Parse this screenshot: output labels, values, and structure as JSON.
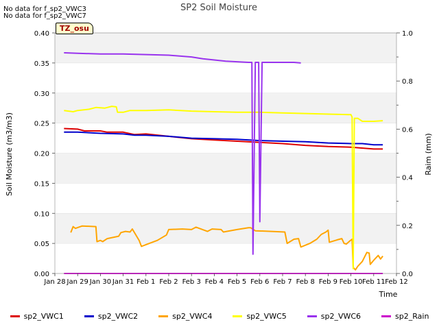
{
  "notes": [
    "No data for f_sp2_VWC3",
    "No data for f_sp2_VWC7"
  ],
  "badge": "TZ_osu",
  "colors": {
    "sp2_VWC1": "#dd0000",
    "sp2_VWC2": "#0000cc",
    "sp2_VWC4": "#ffa500",
    "sp2_VWC5": "#ffff00",
    "sp2_VWC6": "#9933ee",
    "sp2_Rain": "#cc00cc",
    "band": "#f2f2f2",
    "grid": "#dddddd"
  },
  "chart_data": {
    "type": "line",
    "title": "SP2 Soil Moisture",
    "xlabel": "Time",
    "ylabel": "Soil Moisture (m3/m3)",
    "y2label": "Raim (mm)",
    "ylim": [
      0,
      0.4
    ],
    "y2lim": [
      0,
      1.0
    ],
    "xlim": [
      0,
      15
    ],
    "grid": "horizontal",
    "background_bands": "alternating",
    "legend_position": "bottom",
    "yticks": [
      "0.00",
      "0.05",
      "0.10",
      "0.15",
      "0.20",
      "0.25",
      "0.30",
      "0.35",
      "0.40"
    ],
    "y2ticks": [
      "0.0",
      "0.2",
      "0.4",
      "0.6",
      "0.8",
      "1.0"
    ],
    "xticks": [
      "Jan 28",
      "Jan 29",
      "Jan 30",
      "Jan 31",
      "Feb 1",
      "Feb 2",
      "Feb 3",
      "Feb 4",
      "Feb 5",
      "Feb 6",
      "Feb 7",
      "Feb 8",
      "Feb 9",
      "Feb 10",
      "Feb 11",
      "Feb 12"
    ],
    "series": [
      {
        "name": "sp2_VWC1",
        "axis": "left",
        "points": [
          [
            0.4,
            0.241
          ],
          [
            1,
            0.24
          ],
          [
            1.3,
            0.237
          ],
          [
            2,
            0.237
          ],
          [
            2.3,
            0.235
          ],
          [
            3,
            0.235
          ],
          [
            3.5,
            0.231
          ],
          [
            4,
            0.232
          ],
          [
            5,
            0.228
          ],
          [
            6,
            0.224
          ],
          [
            7,
            0.222
          ],
          [
            8,
            0.22
          ],
          [
            9,
            0.218
          ],
          [
            10,
            0.216
          ],
          [
            11,
            0.213
          ],
          [
            12,
            0.211
          ],
          [
            13,
            0.21
          ],
          [
            14,
            0.207
          ],
          [
            14.4,
            0.207
          ]
        ]
      },
      {
        "name": "sp2_VWC2",
        "axis": "left",
        "points": [
          [
            0.4,
            0.235
          ],
          [
            1,
            0.235
          ],
          [
            2,
            0.233
          ],
          [
            3,
            0.232
          ],
          [
            3.5,
            0.23
          ],
          [
            4,
            0.23
          ],
          [
            5,
            0.228
          ],
          [
            6,
            0.225
          ],
          [
            7,
            0.224
          ],
          [
            8,
            0.223
          ],
          [
            9,
            0.221
          ],
          [
            10,
            0.22
          ],
          [
            11,
            0.219
          ],
          [
            12,
            0.217
          ],
          [
            13,
            0.216
          ],
          [
            13.5,
            0.216
          ],
          [
            14,
            0.214
          ],
          [
            14.4,
            0.214
          ]
        ]
      },
      {
        "name": "sp2_VWC4",
        "axis": "left",
        "points": [
          [
            0.7,
            0.068
          ],
          [
            0.8,
            0.078
          ],
          [
            0.9,
            0.075
          ],
          [
            1.2,
            0.079
          ],
          [
            1.8,
            0.078
          ],
          [
            1.85,
            0.053
          ],
          [
            2.0,
            0.055
          ],
          [
            2.1,
            0.053
          ],
          [
            2.3,
            0.058
          ],
          [
            2.8,
            0.062
          ],
          [
            2.9,
            0.068
          ],
          [
            3.1,
            0.07
          ],
          [
            3.3,
            0.069
          ],
          [
            3.4,
            0.074
          ],
          [
            3.7,
            0.055
          ],
          [
            3.8,
            0.045
          ],
          [
            4.0,
            0.048
          ],
          [
            4.5,
            0.055
          ],
          [
            4.9,
            0.064
          ],
          [
            5.0,
            0.073
          ],
          [
            5.6,
            0.074
          ],
          [
            6.0,
            0.073
          ],
          [
            6.2,
            0.077
          ],
          [
            6.7,
            0.07
          ],
          [
            6.9,
            0.074
          ],
          [
            7.3,
            0.073
          ],
          [
            7.4,
            0.069
          ],
          [
            8.0,
            0.073
          ],
          [
            8.5,
            0.076
          ],
          [
            8.6,
            0.076
          ],
          [
            8.8,
            0.071
          ],
          [
            9.5,
            0.07
          ],
          [
            10.1,
            0.069
          ],
          [
            10.2,
            0.05
          ],
          [
            10.5,
            0.057
          ],
          [
            10.7,
            0.058
          ],
          [
            10.8,
            0.044
          ],
          [
            11.2,
            0.05
          ],
          [
            11.5,
            0.057
          ],
          [
            11.7,
            0.065
          ],
          [
            11.9,
            0.069
          ],
          [
            12.0,
            0.072
          ],
          [
            12.05,
            0.052
          ],
          [
            12.4,
            0.056
          ],
          [
            12.6,
            0.058
          ],
          [
            12.7,
            0.05
          ],
          [
            12.8,
            0.049
          ],
          [
            12.95,
            0.054
          ],
          [
            13.05,
            0.057
          ],
          [
            13.1,
            0.01
          ],
          [
            13.2,
            0.006
          ],
          [
            13.3,
            0.012
          ],
          [
            13.5,
            0.02
          ],
          [
            13.7,
            0.035
          ],
          [
            13.8,
            0.034
          ],
          [
            13.85,
            0.015
          ],
          [
            14.0,
            0.022
          ],
          [
            14.2,
            0.03
          ],
          [
            14.3,
            0.024
          ],
          [
            14.4,
            0.029
          ]
        ]
      },
      {
        "name": "sp2_VWC5",
        "axis": "left",
        "points": [
          [
            0.4,
            0.271
          ],
          [
            0.8,
            0.269
          ],
          [
            1.0,
            0.271
          ],
          [
            1.5,
            0.273
          ],
          [
            1.8,
            0.276
          ],
          [
            2.2,
            0.275
          ],
          [
            2.5,
            0.278
          ],
          [
            2.7,
            0.277
          ],
          [
            2.75,
            0.268
          ],
          [
            3.0,
            0.268
          ],
          [
            3.3,
            0.271
          ],
          [
            4.0,
            0.271
          ],
          [
            5.0,
            0.272
          ],
          [
            6.0,
            0.27
          ],
          [
            7.0,
            0.269
          ],
          [
            8.0,
            0.268
          ],
          [
            9.0,
            0.268
          ],
          [
            10.0,
            0.267
          ],
          [
            11.0,
            0.266
          ],
          [
            12.0,
            0.265
          ],
          [
            13.0,
            0.264
          ],
          [
            13.05,
            0.26
          ],
          [
            13.1,
            0.008
          ],
          [
            13.15,
            0.258
          ],
          [
            13.3,
            0.258
          ],
          [
            13.5,
            0.253
          ],
          [
            14.0,
            0.253
          ],
          [
            14.4,
            0.254
          ]
        ]
      },
      {
        "name": "sp2_VWC6",
        "axis": "left",
        "points": [
          [
            0.4,
            0.367
          ],
          [
            1,
            0.366
          ],
          [
            2,
            0.365
          ],
          [
            3,
            0.365
          ],
          [
            4,
            0.364
          ],
          [
            5,
            0.363
          ],
          [
            6,
            0.36
          ],
          [
            6.5,
            0.357
          ],
          [
            7,
            0.355
          ],
          [
            7.5,
            0.353
          ],
          [
            8,
            0.352
          ],
          [
            8.5,
            0.351
          ],
          [
            8.65,
            0.351
          ],
          [
            8.7,
            0.032
          ],
          [
            8.8,
            0.351
          ],
          [
            8.95,
            0.351
          ],
          [
            9.0,
            0.086
          ],
          [
            9.1,
            0.351
          ],
          [
            9.5,
            0.351
          ],
          [
            10,
            0.351
          ],
          [
            10.5,
            0.351
          ],
          [
            10.8,
            0.35
          ]
        ]
      },
      {
        "name": "sp2_Rain",
        "axis": "right",
        "points": [
          [
            0.4,
            0.0
          ],
          [
            14.4,
            0.0
          ]
        ]
      }
    ]
  }
}
